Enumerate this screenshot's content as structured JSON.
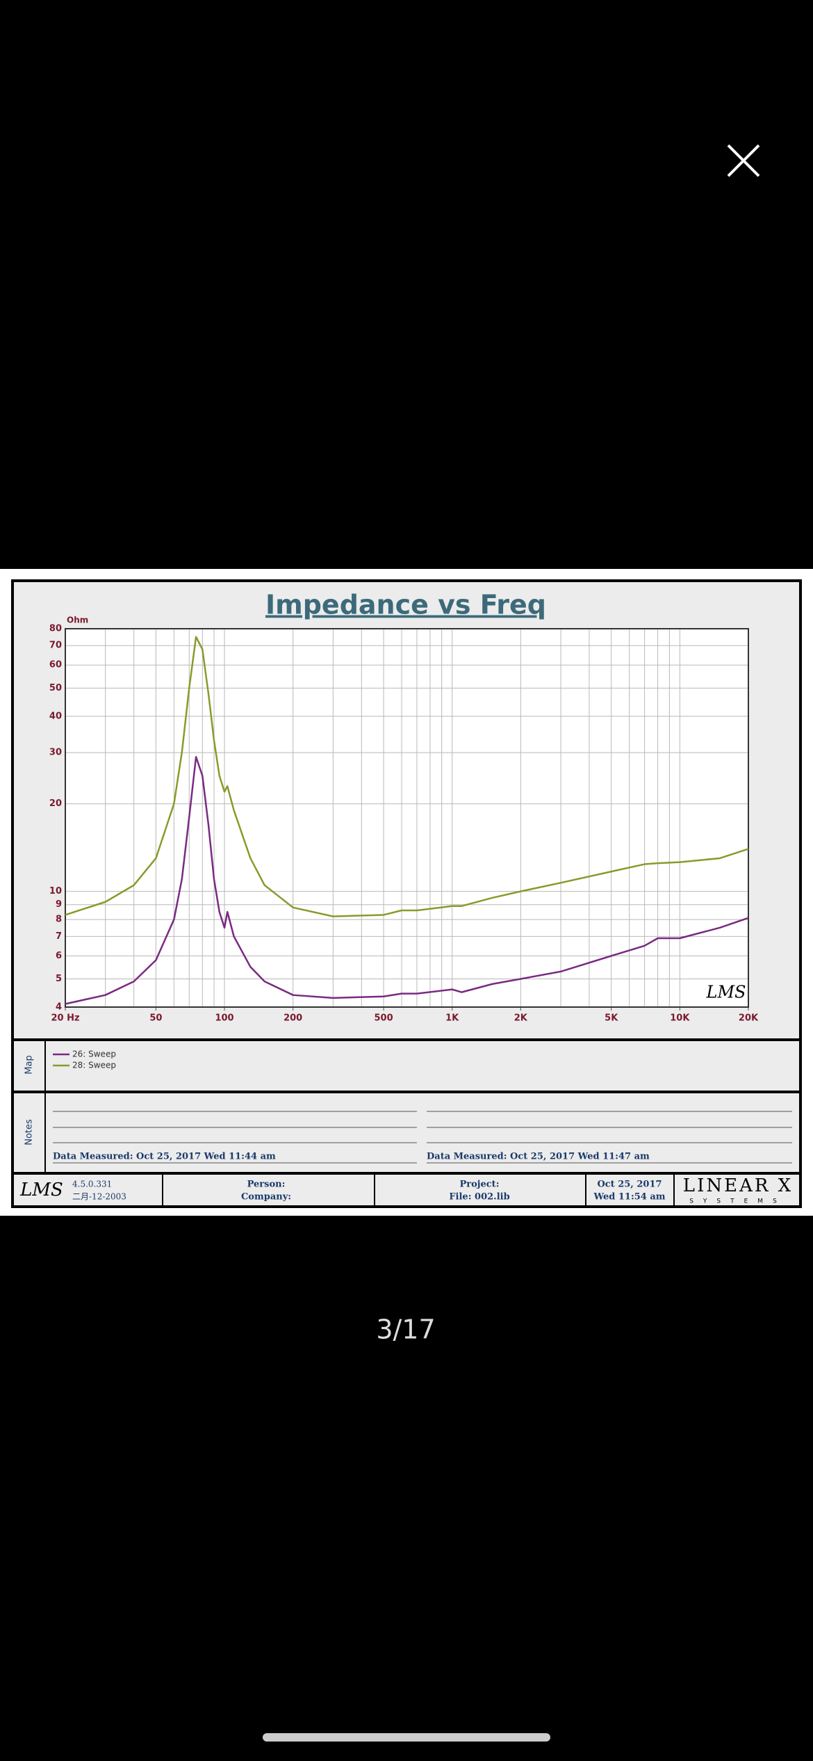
{
  "chart_data": {
    "type": "line",
    "title": "Impedance vs Freq",
    "y_unit": "Ohm",
    "annotation": "LMS",
    "x": [
      20,
      30,
      40,
      50,
      60,
      65,
      70,
      75,
      80,
      85,
      90,
      95,
      100,
      103,
      110,
      130,
      150,
      200,
      300,
      500,
      600,
      700,
      1000,
      1100,
      1500,
      2000,
      3000,
      5000,
      7000,
      8000,
      10000,
      15000,
      20000
    ],
    "series": [
      {
        "name": "26: Sweep",
        "color": "#7a2a82",
        "values": [
          4.1,
          4.4,
          4.9,
          5.8,
          8,
          11,
          18,
          29,
          25,
          17,
          11,
          8.5,
          7.5,
          8.5,
          7,
          5.5,
          4.9,
          4.4,
          4.3,
          4.35,
          4.45,
          4.45,
          4.6,
          4.5,
          4.8,
          5,
          5.3,
          6,
          6.5,
          6.9,
          6.9,
          7.5,
          8.1
        ]
      },
      {
        "name": "28: Sweep",
        "color": "#8a9a2a",
        "values": [
          8.3,
          9.2,
          10.5,
          13,
          20,
          30,
          50,
          75,
          68,
          48,
          33,
          25,
          22,
          23,
          19,
          13,
          10.5,
          8.8,
          8.2,
          8.3,
          8.6,
          8.6,
          8.9,
          8.9,
          9.5,
          10,
          10.7,
          11.7,
          12.4,
          12.5,
          12.6,
          13,
          14
        ]
      }
    ],
    "xscale": "log",
    "yscale": "log",
    "grid": true,
    "xlim": [
      20,
      20000
    ],
    "ylim": [
      4,
      80
    ],
    "xticks": [
      {
        "value": 20,
        "label": "20 Hz"
      },
      50,
      100,
      200,
      500,
      {
        "value": 1000,
        "label": "1K"
      },
      {
        "value": 2000,
        "label": "2K"
      },
      {
        "value": 5000,
        "label": "5K"
      },
      {
        "value": 10000,
        "label": "10K"
      },
      {
        "value": 20000,
        "label": "20K"
      }
    ],
    "xgrid": [
      20,
      30,
      40,
      50,
      60,
      70,
      80,
      90,
      100,
      200,
      300,
      400,
      500,
      600,
      700,
      800,
      900,
      1000,
      2000,
      3000,
      4000,
      5000,
      6000,
      7000,
      8000,
      9000,
      10000,
      20000
    ],
    "yticks": [
      4,
      5,
      6,
      7,
      8,
      9,
      10,
      20,
      30,
      40,
      50,
      60,
      70,
      80
    ]
  },
  "panels": {
    "map_label": "Map",
    "notes_label": "Notes",
    "notes": [
      "Data Measured: Oct 25, 2017  Wed 11:44 am",
      "Data Measured: Oct 25, 2017  Wed 11:47 am"
    ]
  },
  "footer": {
    "logo": "LMS",
    "version": "4.5.0.331",
    "version_date": "二月-12-2003",
    "person": "Person:",
    "company": "Company:",
    "project": "Project:",
    "file": "File: 002.lib",
    "date": "Oct 25, 2017",
    "time": "Wed 11:54 am",
    "brand": "LINEAR X",
    "brand_sub": "SYSTEMS"
  },
  "viewer": {
    "counter": "3/17"
  }
}
